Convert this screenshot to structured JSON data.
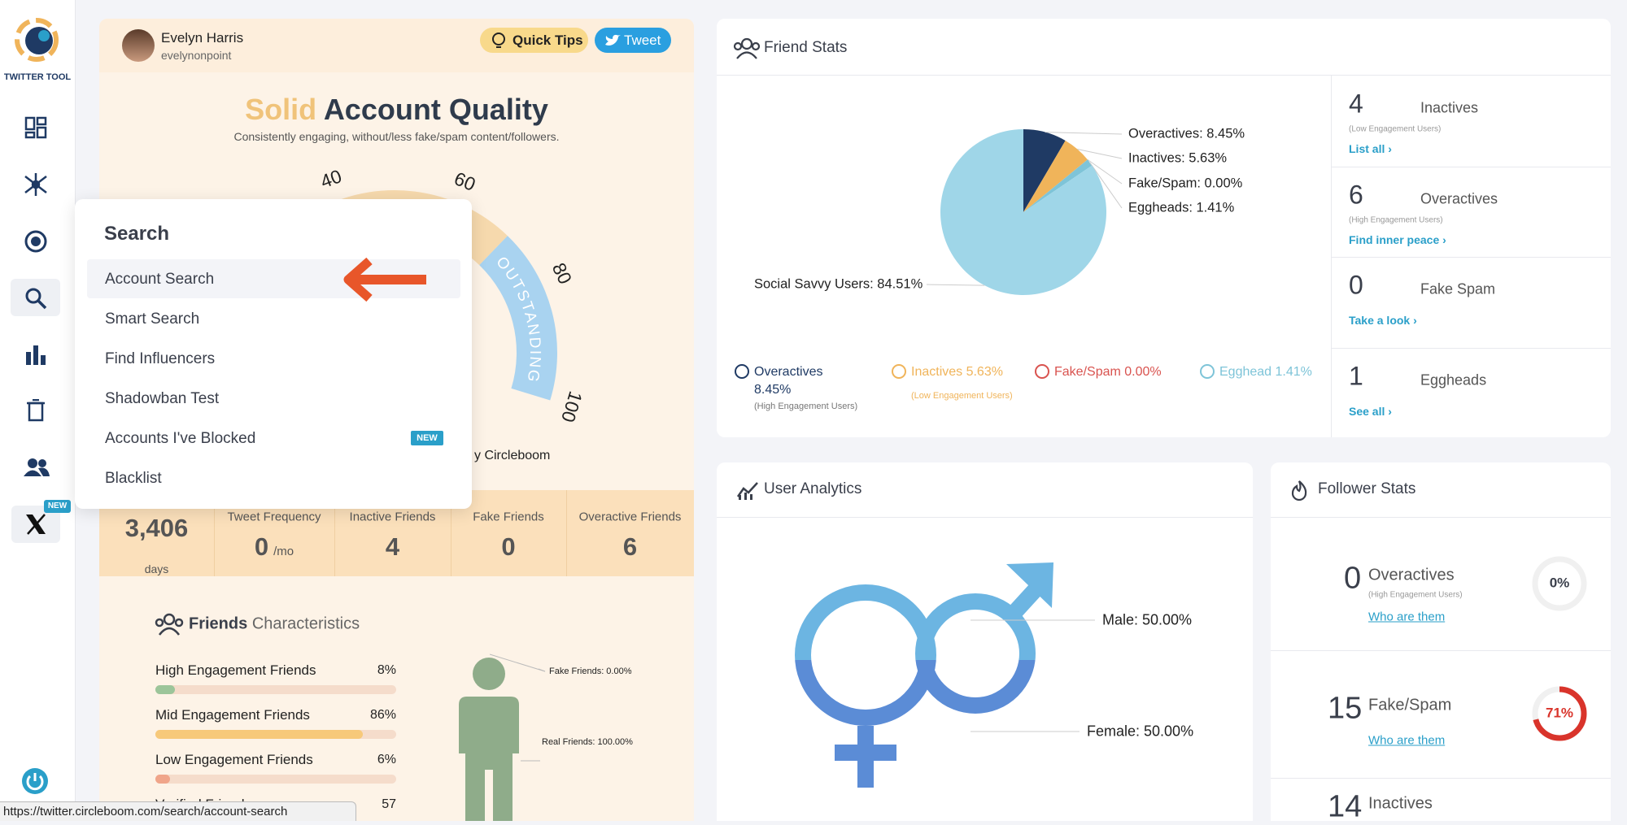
{
  "sidebar": {
    "brand": "TWITTER TOOL",
    "badge": "NEW"
  },
  "account": {
    "name": "Evelyn Harris",
    "handle": "evelynonpoint",
    "quick_tips": "Quick Tips",
    "tweet": "Tweet"
  },
  "quality": {
    "title_accent": "Solid",
    "title": "Account Quality",
    "subtitle": "Consistently engaging, without/less fake/spam content/followers.",
    "gauge_ticks": [
      40,
      60,
      80,
      100
    ],
    "gauge_label": "OUTSTANDING",
    "credit": "y Circleboom"
  },
  "search_menu": {
    "title": "Search",
    "items": [
      "Account Search",
      "Smart Search",
      "Find Influencers",
      "Shadowban Test",
      "Accounts I've Blocked",
      "Blacklist"
    ],
    "badge": "NEW"
  },
  "stats_row": {
    "age": "3,406",
    "age_unit": "days",
    "cells": [
      {
        "label": "Tweet Frequency",
        "value": "0",
        "unit": "/mo"
      },
      {
        "label": "Inactive Friends",
        "value": "4"
      },
      {
        "label": "Fake Friends",
        "value": "0"
      },
      {
        "label": "Overactive Friends",
        "value": "6"
      }
    ]
  },
  "characteristics": {
    "title": "Friends",
    "subtitle": "Characteristics",
    "rows": [
      {
        "name": "High Engagement Friends",
        "value": 8,
        "label": "8%",
        "color": "#9cc59a"
      },
      {
        "name": "Mid Engagement Friends",
        "value": 86,
        "label": "86%",
        "color": "#f7c97a"
      },
      {
        "name": "Low Engagement Friends",
        "value": 6,
        "label": "6%",
        "color": "#f0a58a"
      }
    ],
    "verified": {
      "name": "Verified Friends",
      "label": "57"
    },
    "figure_labels": [
      "Fake Friends: 0.00%",
      "Real Friends: 100.00%"
    ]
  },
  "friend_stats": {
    "title": "Friend Stats",
    "pie": {
      "type": "pie",
      "slices": [
        {
          "label": "Overactives: 8.45%",
          "value": 8.45,
          "color": "#1f3a64"
        },
        {
          "label": "Inactives: 5.63%",
          "value": 5.63,
          "color": "#f0b45a"
        },
        {
          "label": "Fake/Spam: 0.00%",
          "value": 0,
          "color": "#e05a4f"
        },
        {
          "label": "Eggheads: 1.41%",
          "value": 1.41,
          "color": "#7ec4d8"
        },
        {
          "label": "Social Savvy Users: 84.51%",
          "value": 84.51,
          "color": "#9fd6e8"
        }
      ]
    },
    "legend": [
      {
        "text": "Overactives 8.45%",
        "note": "(High Engagement Users)",
        "color": "#1f3a64"
      },
      {
        "text": "Inactives 5.63%",
        "note": "(Low Engagement Users)",
        "color": "#f0b45a"
      },
      {
        "text": "Fake/Spam 0.00%",
        "color": "#d9534f"
      },
      {
        "text": "Egghead 1.41%",
        "color": "#7ec4d8"
      }
    ],
    "summary": [
      {
        "count": "4",
        "title": "Inactives",
        "note": "(Low Engagement Users)",
        "link": "List all ›"
      },
      {
        "count": "6",
        "title": "Overactives",
        "note": "(High Engagement Users)",
        "link": "Find inner peace ›"
      },
      {
        "count": "0",
        "title": "Fake Spam",
        "link": "Take a look ›"
      },
      {
        "count": "1",
        "title": "Eggheads",
        "link": "See all ›"
      }
    ]
  },
  "user_analytics": {
    "title": "User Analytics",
    "labels": [
      "Male: 50.00%",
      "Female: 50.00%"
    ]
  },
  "follower_stats": {
    "title": "Follower Stats",
    "rows": [
      {
        "count": "0",
        "title": "Overactives",
        "note": "(High Engagement Users)",
        "link": "Who are them",
        "ring": {
          "value": 0,
          "label": "0%",
          "color": "#d9d9d9"
        }
      },
      {
        "count": "15",
        "title": "Fake/Spam",
        "link": "Who are them",
        "ring": {
          "value": 71,
          "label": "71%",
          "color": "#d9342b"
        }
      },
      {
        "count": "14",
        "title": "Inactives"
      }
    ]
  },
  "status_url": "https://twitter.circleboom.com/search/account-search"
}
